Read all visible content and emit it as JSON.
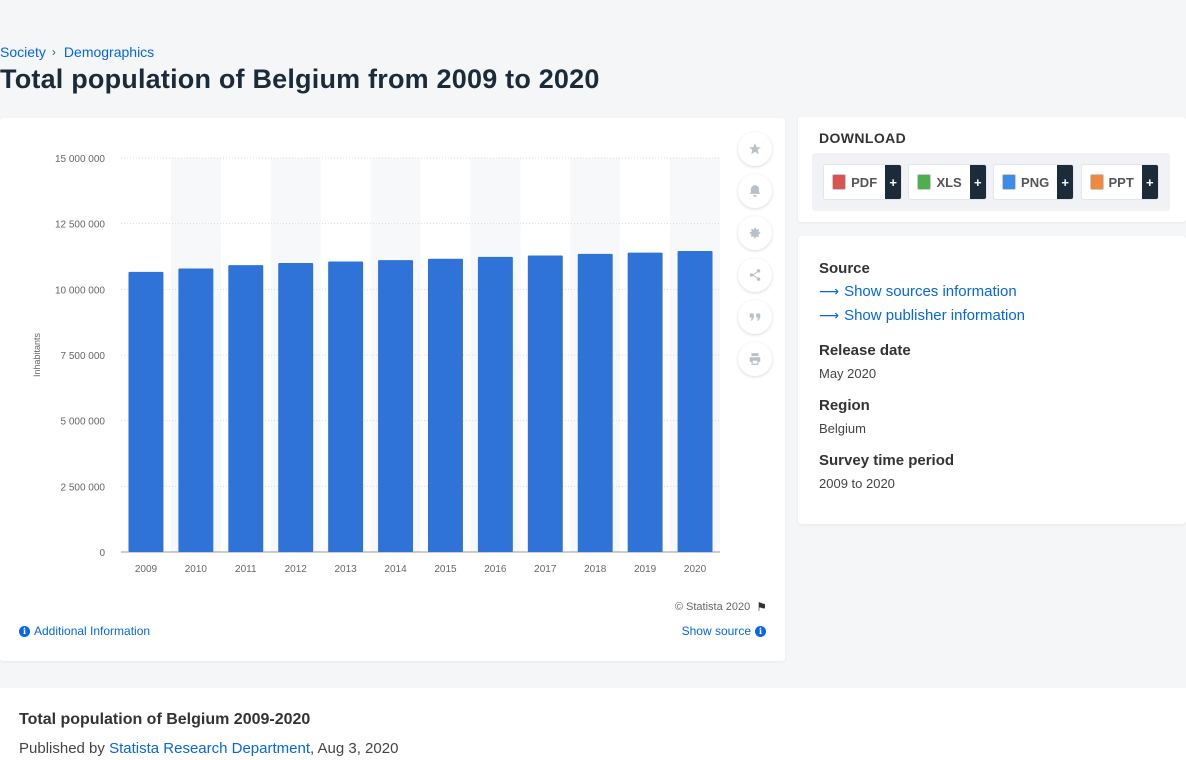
{
  "breadcrumb": {
    "items": [
      "Society",
      "Demographics"
    ]
  },
  "page_title": "Total population of Belgium from 2009 to 2020",
  "chart_data": {
    "type": "bar",
    "categories": [
      "2009",
      "2010",
      "2011",
      "2012",
      "2013",
      "2014",
      "2015",
      "2016",
      "2017",
      "2018",
      "2019",
      "2020"
    ],
    "values": [
      10667000,
      10791000,
      10920000,
      11001000,
      11061000,
      11113000,
      11166000,
      11237000,
      11290000,
      11352000,
      11399000,
      11458000
    ],
    "ylabel": "Inhabitants",
    "xlabel": "",
    "ylim": [
      0,
      15000000
    ],
    "yticks": [
      0,
      2500000,
      5000000,
      7500000,
      10000000,
      12500000,
      15000000
    ],
    "ytick_labels": [
      "0",
      "2 500 000",
      "5 000 000",
      "7 500 000",
      "10 000 000",
      "12 500 000",
      "15 000 000"
    ],
    "bar_color": "#2f73d9",
    "grid": true
  },
  "chart_tools": [
    {
      "name": "favorite-icon"
    },
    {
      "name": "bell-icon"
    },
    {
      "name": "gear-icon"
    },
    {
      "name": "share-icon"
    },
    {
      "name": "quote-icon"
    },
    {
      "name": "print-icon"
    }
  ],
  "copyright": "© Statista 2020",
  "additional_info": "Additional Information",
  "show_source": "Show source",
  "download": {
    "title": "DOWNLOAD",
    "buttons": [
      {
        "label": "PDF",
        "color": "#d9534f"
      },
      {
        "label": "XLS",
        "color": "#4caf50"
      },
      {
        "label": "PNG",
        "color": "#3a8ee6"
      },
      {
        "label": "PPT",
        "color": "#f0883e"
      }
    ],
    "plus": "+"
  },
  "info": {
    "source_label": "Source",
    "sources_link": "Show sources information",
    "publisher_link": "Show publisher information",
    "release_label": "Release date",
    "release_value": "May 2020",
    "region_label": "Region",
    "region_value": "Belgium",
    "period_label": "Survey time period",
    "period_value": "2009 to 2020"
  },
  "bottom": {
    "title": "Total population of Belgium 2009-2020",
    "published_prefix": "Published by",
    "publisher": "Statista Research Department",
    "date": ", Aug 3, 2020"
  }
}
